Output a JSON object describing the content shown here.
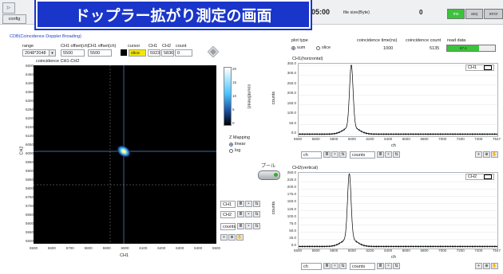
{
  "banner": {
    "title": "ドップラー拡がり測定の画面"
  },
  "top": {
    "tab_label": "config",
    "time": "05:00",
    "file_size_label": "file size(Byte)",
    "file_size_value": "0",
    "led_ms": "ms",
    "led_acq": "acq",
    "led_error": "error",
    "colors": {
      "ms": "#3cc23c",
      "acq": "#c9ccd0",
      "error": "#c9ccd0"
    }
  },
  "cdb": {
    "section_title": "CDB(Coincidence Doppler Broading)",
    "range_label": "range",
    "range_value": "2048*2048",
    "ch1_offset_label": "CH1 offset(ch)",
    "ch1_offset_value": "5500",
    "ch2_offset_label": "CH1 offset(ch)",
    "ch2_offset_value": "5500",
    "cursor_label": "cursor",
    "cursor_value": "slice",
    "ch1_label": "CH1",
    "ch1_value": "5923",
    "ch2_label": "CH2",
    "ch2_value": "5836",
    "count_label": "count",
    "count_value": "0"
  },
  "heatmap": {
    "title": "coincidence CH1-CH2",
    "xlabel": "CH1",
    "ylabel": "CH2",
    "x_ticks": [
      "5500",
      "5600",
      "5700",
      "5800",
      "5900",
      "6000",
      "6100",
      "6200",
      "6300",
      "6400",
      "6500"
    ],
    "y_ticks": [
      "6500",
      "6450",
      "6400",
      "6350",
      "6300",
      "6250",
      "6200",
      "6150",
      "6100",
      "6050",
      "6000",
      "5950",
      "5900",
      "5850",
      "5800",
      "5750",
      "5700",
      "5650",
      "5600",
      "5550",
      "5500"
    ],
    "colorbar_ticks": [
      "20",
      "15",
      "10",
      "5",
      "0"
    ],
    "colorbar_label": "count(linear)"
  },
  "zmap": {
    "title": "Z Mapping",
    "linear": "linear",
    "log": "log"
  },
  "side_controls": {
    "row1": "CH1",
    "row2": "CH2",
    "row3": "counts"
  },
  "pool": {
    "label": "プール"
  },
  "plot_type": {
    "label": "plot type",
    "sum": "sum",
    "slice": "slice"
  },
  "coinc": {
    "time_label": "coincidence time(ns)",
    "time_value": "1000",
    "count_label": "coincidence count",
    "count_value": "5135",
    "read_label": "read data",
    "read_value": "67.4"
  },
  "ch1plot": {
    "title": "CH1(horizontal)",
    "legend": "CH1",
    "xlabel": "ch",
    "ylabel": "counts",
    "y_ticks": [
      "350.0",
      "300.0",
      "250.0",
      "200.0",
      "150.0",
      "100.0",
      "50.0",
      "0.0"
    ],
    "x_ticks": [
      "5500",
      "5600",
      "5800",
      "6000",
      "6200",
      "6400",
      "6600",
      "6800",
      "7000",
      "7200",
      "7400",
      "7547"
    ],
    "x_field": "ch",
    "y_field": "counts"
  },
  "ch2plot": {
    "title": "CH2(vertical)",
    "legend": "CH2",
    "xlabel": "ch",
    "ylabel": "counts",
    "y_ticks": [
      "250.0",
      "225.0",
      "200.0",
      "175.0",
      "150.0",
      "125.0",
      "100.0",
      "75.0",
      "50.0",
      "25.0",
      "0.0"
    ],
    "x_ticks": [
      "5500",
      "5600",
      "5800",
      "6000",
      "6200",
      "6400",
      "6600",
      "6800",
      "7000",
      "7200",
      "7400",
      "7547"
    ],
    "x_field": "ch",
    "y_field": "counts"
  }
}
